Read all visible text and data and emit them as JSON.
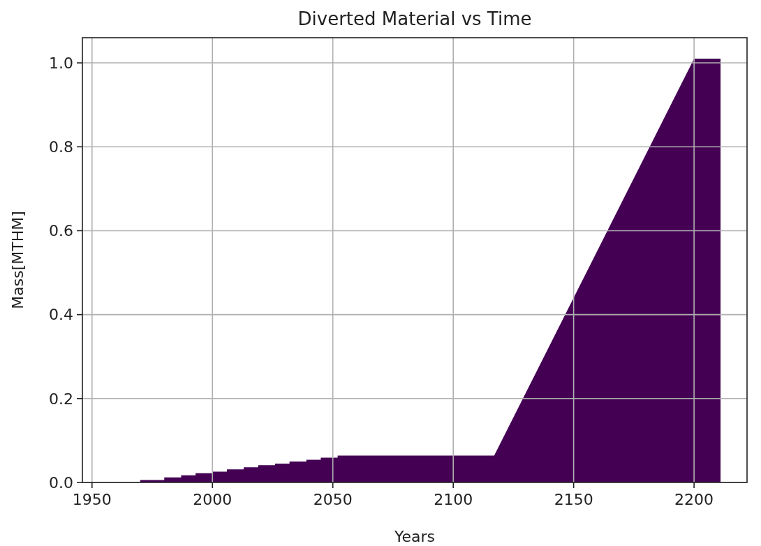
{
  "chart_data": {
    "type": "area",
    "title": "Diverted Material vs Time",
    "xlabel": "Years",
    "ylabel": "Mass[MTHM]",
    "x": [
      1970,
      1970,
      1980,
      1980,
      1987,
      1987,
      1993,
      1993,
      2000,
      2000,
      2006,
      2006,
      2013,
      2013,
      2019,
      2019,
      2026,
      2026,
      2032,
      2032,
      2039,
      2039,
      2045,
      2045,
      2052,
      2052,
      2117,
      2200,
      2211,
      2211
    ],
    "series": [
      {
        "color": "#440154",
        "values": [
          0,
          0.006,
          0.006,
          0.012,
          0.012,
          0.017,
          0.017,
          0.022,
          0.022,
          0.026,
          0.026,
          0.031,
          0.031,
          0.036,
          0.036,
          0.041,
          0.041,
          0.045,
          0.045,
          0.05,
          0.05,
          0.054,
          0.054,
          0.059,
          0.059,
          0.064,
          0.064,
          1.01,
          1.01,
          0
        ]
      }
    ],
    "xlim": [
      1946,
      2222
    ],
    "ylim": [
      0,
      1.06
    ],
    "xticks": [
      1950,
      2000,
      2050,
      2100,
      2150,
      2200
    ],
    "yticks": [
      {
        "value": 0,
        "label": "0.0"
      },
      {
        "value": 0.2,
        "label": "0.2"
      },
      {
        "value": 0.4,
        "label": "0.4"
      },
      {
        "value": 0.6,
        "label": "0.6"
      },
      {
        "value": 0.8,
        "label": "0.8"
      },
      {
        "value": 1,
        "label": "1.0"
      }
    ],
    "grid": true
  }
}
